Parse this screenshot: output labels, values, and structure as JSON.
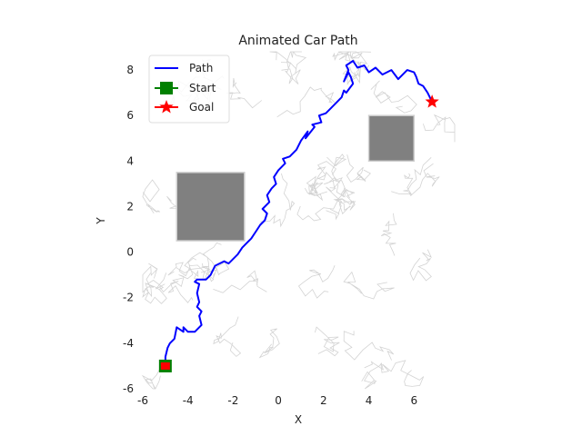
{
  "chart_data": {
    "type": "line",
    "title": "Animated Car Path",
    "xlabel": "X",
    "ylabel": "Y",
    "xlim": [
      -6,
      7.8
    ],
    "ylim": [
      -6,
      8.8
    ],
    "xticks": [
      "-6",
      "-4",
      "-2",
      "0",
      "2",
      "4",
      "6"
    ],
    "xtick_values": [
      -6,
      -4,
      -2,
      0,
      2,
      4,
      6
    ],
    "yticks": [
      "-6",
      "-4",
      "-2",
      "0",
      "2",
      "4",
      "6",
      "8"
    ],
    "ytick_values": [
      -6,
      -4,
      -2,
      0,
      2,
      4,
      6,
      8
    ],
    "grid": false,
    "legend_position": "upper-left",
    "legend": [
      {
        "label": "Path",
        "marker": "line",
        "color": "#0000ff"
      },
      {
        "label": "Start",
        "marker": "square",
        "color": "#008000"
      },
      {
        "label": "Goal",
        "marker": "star",
        "color": "#ff0000"
      }
    ],
    "obstacles": [
      {
        "x": [
          -4.5,
          -1.5
        ],
        "y": [
          0.5,
          3.5
        ],
        "color": "#808080"
      },
      {
        "x": [
          4.0,
          6.0
        ],
        "y": [
          4.0,
          6.0
        ],
        "color": "#808080"
      }
    ],
    "start": {
      "x": -5.0,
      "y": -5.0
    },
    "goal": {
      "x": 6.8,
      "y": 6.6
    },
    "car": {
      "x": -5.0,
      "y": -5.0,
      "color": "#ff0000"
    },
    "series": [
      {
        "name": "Path",
        "color": "#0000ff",
        "x": [
          -5.0,
          -5.0,
          -4.9,
          -4.8,
          -4.6,
          -4.5,
          -4.2,
          -4.2,
          -4.0,
          -3.7,
          -3.4,
          -3.5,
          -3.4,
          -3.6,
          -3.5,
          -3.6,
          -3.5,
          -3.7,
          -3.6,
          -3.2,
          -3.0,
          -2.8,
          -2.6,
          -2.4,
          -2.2,
          -2.0,
          -1.8,
          -1.6,
          -1.4,
          -1.2,
          -1.0,
          -0.8,
          -0.6,
          -0.5,
          -0.7,
          -0.4,
          -0.5,
          -0.3,
          -0.1,
          -0.2,
          0.0,
          0.3,
          0.2,
          0.5,
          0.8,
          1.0,
          1.3,
          1.2,
          1.6,
          1.5,
          1.9,
          1.8,
          2.1,
          2.3,
          2.6,
          2.8,
          2.9,
          3.0,
          3.3,
          3.2,
          3.1,
          2.9,
          3.1,
          3.0,
          3.3,
          3.5,
          3.8,
          4.0,
          4.3,
          4.6,
          4.8,
          5.0,
          5.3,
          5.7,
          6.0,
          6.1,
          6.2,
          6.4,
          6.6,
          6.8
        ],
        "y": [
          -5.0,
          -4.6,
          -4.2,
          -4.0,
          -3.8,
          -3.3,
          -3.5,
          -3.3,
          -3.5,
          -3.5,
          -3.2,
          -2.8,
          -2.6,
          -2.4,
          -2.2,
          -1.8,
          -1.4,
          -1.3,
          -1.2,
          -1.2,
          -1.0,
          -0.6,
          -0.5,
          -0.4,
          -0.5,
          -0.3,
          -0.1,
          0.2,
          0.4,
          0.6,
          0.9,
          1.2,
          1.4,
          1.7,
          1.9,
          2.2,
          2.5,
          2.8,
          3.0,
          3.3,
          3.6,
          3.9,
          4.1,
          4.2,
          4.5,
          4.9,
          5.3,
          5.0,
          5.5,
          5.6,
          5.7,
          6.0,
          6.1,
          6.3,
          6.6,
          6.8,
          7.1,
          7.0,
          7.4,
          7.7,
          7.9,
          7.5,
          8.0,
          8.2,
          8.4,
          8.1,
          8.2,
          7.9,
          8.1,
          7.8,
          7.9,
          8.0,
          7.6,
          8.0,
          7.9,
          7.7,
          7.4,
          7.3,
          7.0,
          6.6
        ]
      }
    ]
  }
}
